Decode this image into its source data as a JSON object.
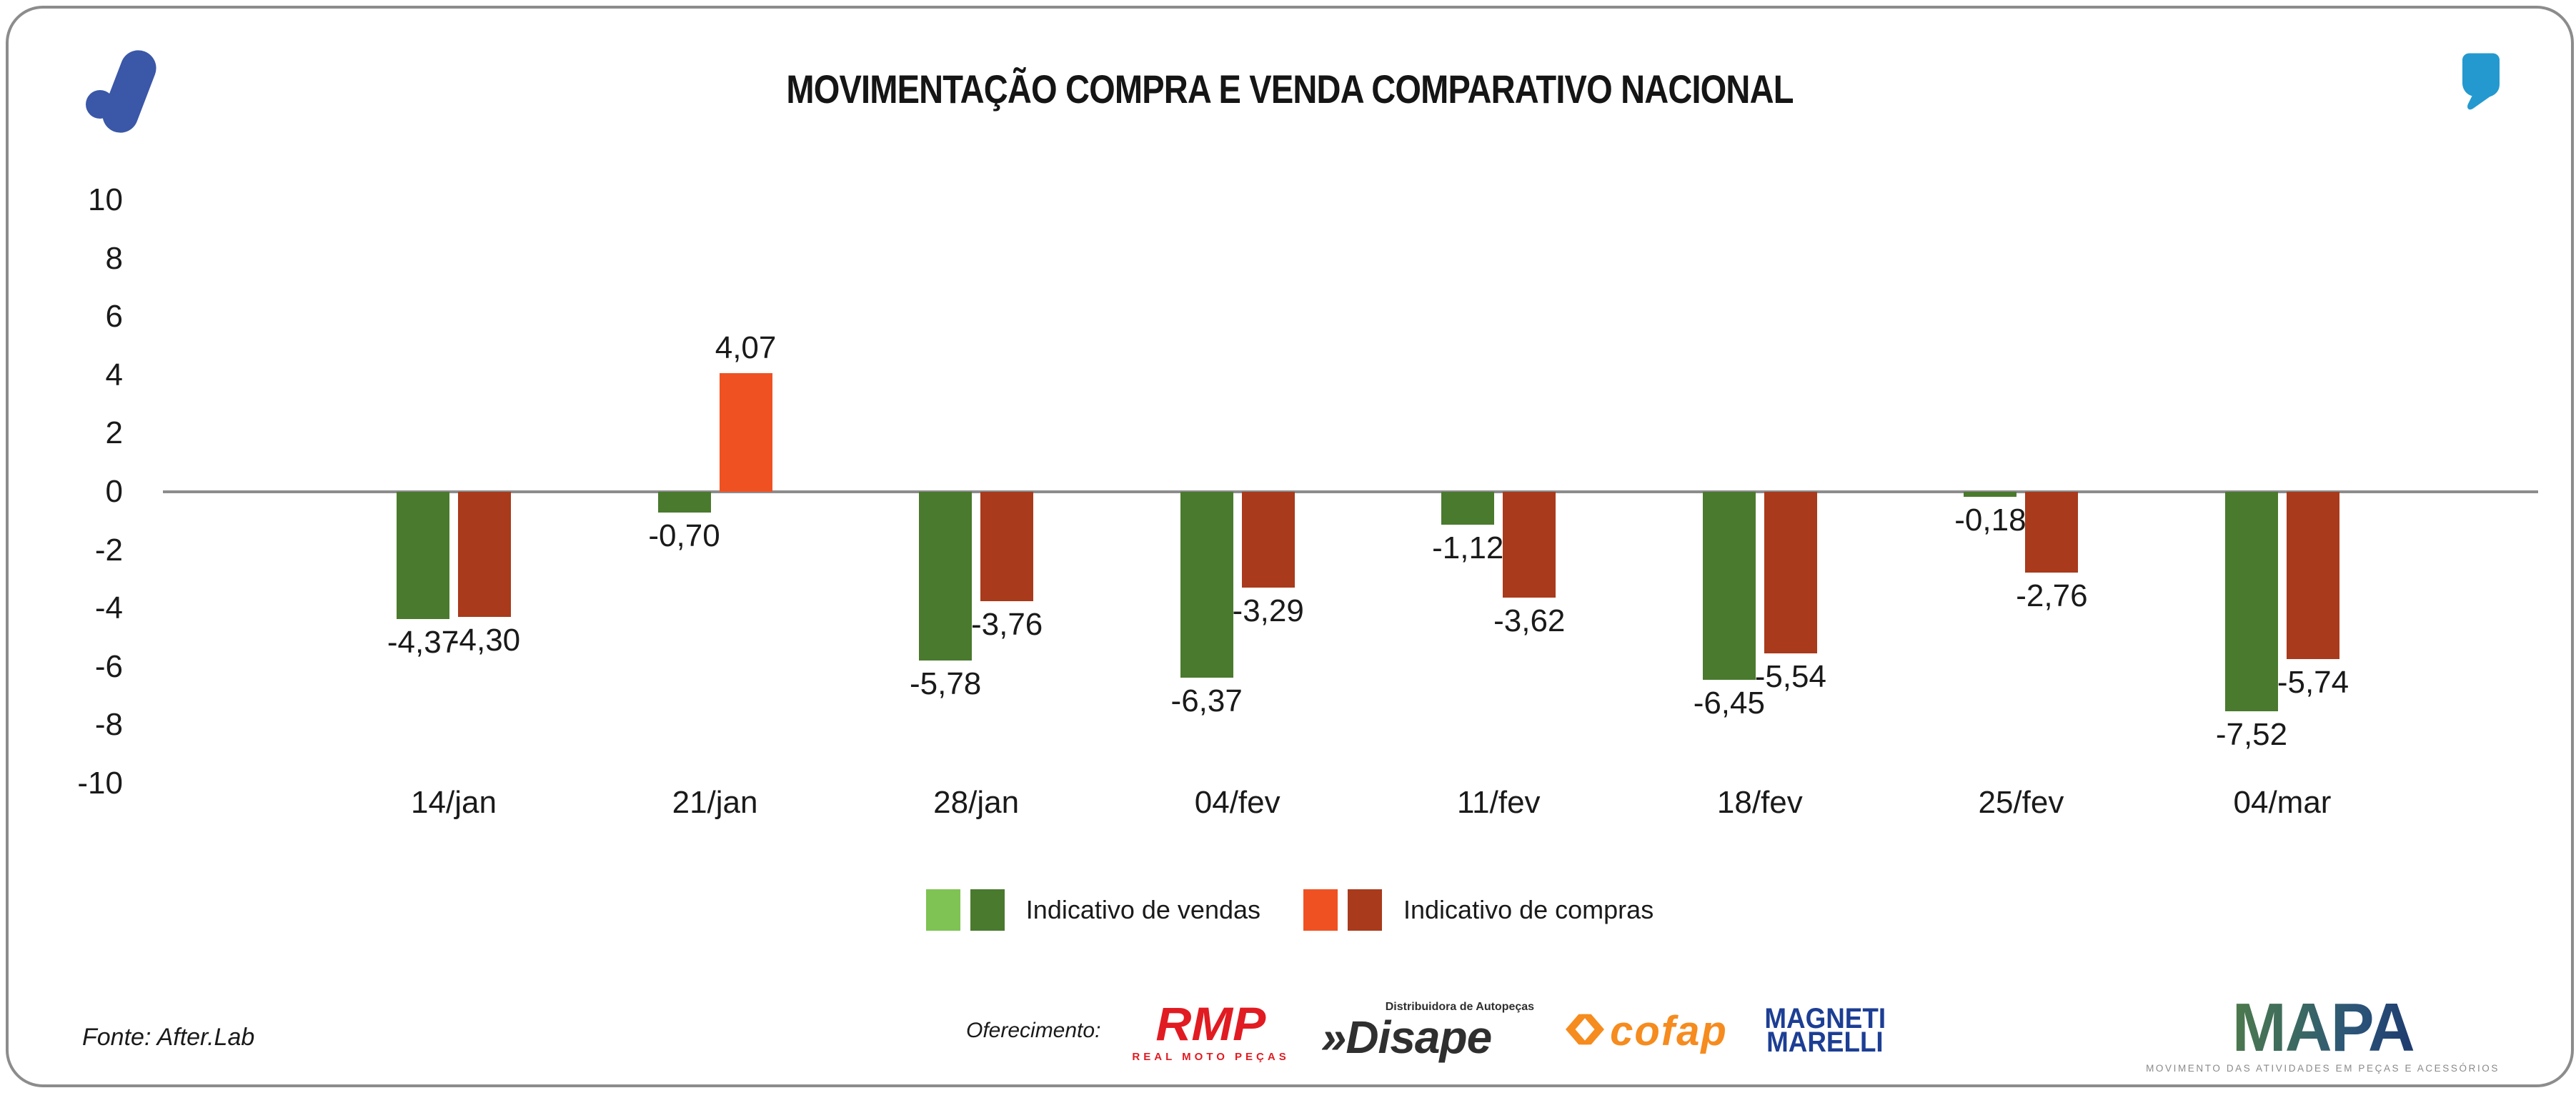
{
  "header": {
    "title": "MOVIMENTAÇÃO COMPRA E VENDA COMPARATIVO NACIONAL"
  },
  "branding": {
    "left_logo": "afterlab-mark",
    "left_logo_color": "#3a57a8",
    "right_logo": "quote-mark",
    "right_logo_color": "#2499cf"
  },
  "chart_data": {
    "type": "bar",
    "title": "MOVIMENTAÇÃO COMPRA E VENDA COMPARATIVO NACIONAL",
    "categories": [
      "14/jan",
      "21/jan",
      "28/jan",
      "04/fev",
      "11/fev",
      "18/fev",
      "25/fev",
      "04/mar"
    ],
    "series": [
      {
        "name": "Indicativo de vendas",
        "values": [
          -4.37,
          -0.7,
          -5.78,
          -6.37,
          -1.12,
          -6.45,
          -0.18,
          -7.52
        ],
        "labels": [
          "-4,37",
          "-0,70",
          "-5,78",
          "-6,37",
          "-1,12",
          "-6,45",
          "-0,18",
          "-7,52"
        ],
        "color_positive": "#7ec353",
        "color_negative": "#4a7a2e"
      },
      {
        "name": "Indicativo de compras",
        "values": [
          -4.3,
          4.07,
          -3.76,
          -3.29,
          -3.62,
          -5.54,
          -2.76,
          -5.74
        ],
        "labels": [
          "-4,30",
          "4,07",
          "-3,76",
          "-3,29",
          "-3,62",
          "-5,54",
          "-2,76",
          "-5,74"
        ],
        "color_positive": "#f05123",
        "color_negative": "#a93a1b"
      }
    ],
    "ylim": [
      -10,
      10
    ],
    "yticks": [
      10,
      8,
      6,
      4,
      2,
      0,
      -2,
      -4,
      -6,
      -8,
      -10
    ],
    "grid": false,
    "legend_position": "bottom",
    "zero_line_color": "#8c8c8c"
  },
  "legend": {
    "entries": [
      {
        "label": "Indicativo de vendas"
      },
      {
        "label": "Indicativo de compras"
      }
    ]
  },
  "footer": {
    "source": "Fonte: After.Lab",
    "sponsor_label": "Oferecimento:",
    "sponsors": [
      {
        "id": "rmp",
        "text": "RMP",
        "subtext": "REAL MOTO PEÇAS",
        "color": "#e11b22"
      },
      {
        "id": "disape",
        "prefix": "»",
        "text": "Disape",
        "subtext": "Distribuidora de Autopeças",
        "color": "#2f2f2f"
      },
      {
        "id": "cofap",
        "text": "cofap",
        "color": "#f68b1e"
      },
      {
        "id": "magneti-marelli",
        "line1": "MAGNETI",
        "line2": "MARELLI",
        "color": "#1c3e94"
      }
    ],
    "mapa": {
      "text": "MAPA",
      "tagline": "MOVIMENTO DAS ATIVIDADES EM PEÇAS E ACESSÓRIOS"
    }
  }
}
